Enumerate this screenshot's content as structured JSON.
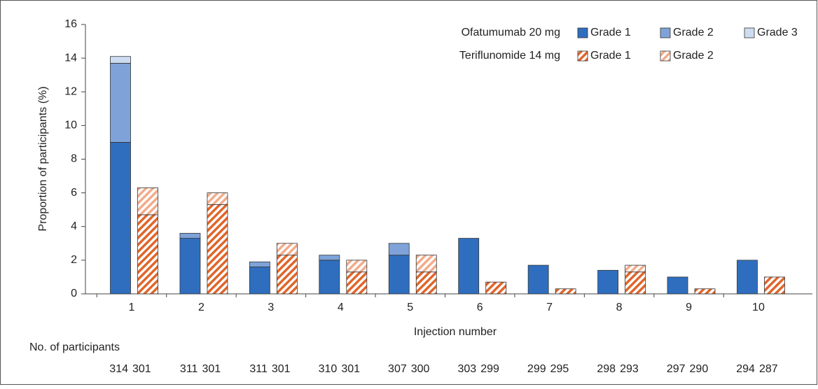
{
  "chart_data": {
    "type": "bar",
    "stacked": true,
    "y_label": "Proportion of participants (%)",
    "x_label": "Injection number",
    "categories": [
      "1",
      "2",
      "3",
      "4",
      "5",
      "6",
      "7",
      "8",
      "9",
      "10"
    ],
    "ylim": [
      0,
      16
    ],
    "yticks": [
      0,
      2,
      4,
      6,
      8,
      10,
      12,
      14,
      16
    ],
    "groups": [
      {
        "name": "Ofatumumab 20 mg",
        "pattern": "solid",
        "series": [
          {
            "name": "Grade 1",
            "color": "#2f6ebf",
            "values": [
              9.0,
              3.3,
              1.6,
              2.0,
              2.3,
              3.3,
              1.7,
              1.4,
              1.0,
              2.0
            ]
          },
          {
            "name": "Grade 2",
            "color": "#7fa3d9",
            "values": [
              4.7,
              0.3,
              0.3,
              0.3,
              0.7,
              0,
              0,
              0,
              0,
              0
            ]
          },
          {
            "name": "Grade 3",
            "color": "#cddcf0",
            "values": [
              0.4,
              0,
              0,
              0,
              0,
              0,
              0,
              0,
              0,
              0
            ]
          }
        ]
      },
      {
        "name": "Teriflunomide 14 mg",
        "pattern": "hatch",
        "series": [
          {
            "name": "Grade 1",
            "color": "#e0652a",
            "values": [
              4.7,
              5.3,
              2.3,
              1.3,
              1.3,
              0.7,
              0.3,
              1.3,
              0.3,
              1.0
            ]
          },
          {
            "name": "Grade 2",
            "color": "#f2ab8a",
            "values": [
              1.6,
              0.7,
              0.7,
              0.7,
              1.0,
              0,
              0,
              0.4,
              0,
              0
            ]
          }
        ]
      }
    ],
    "participants": {
      "label": "No. of participants",
      "counts": [
        [
          314,
          301
        ],
        [
          311,
          301
        ],
        [
          311,
          301
        ],
        [
          310,
          301
        ],
        [
          307,
          300
        ],
        [
          303,
          299
        ],
        [
          299,
          295
        ],
        [
          298,
          293
        ],
        [
          297,
          290
        ],
        [
          294,
          287
        ]
      ]
    }
  }
}
